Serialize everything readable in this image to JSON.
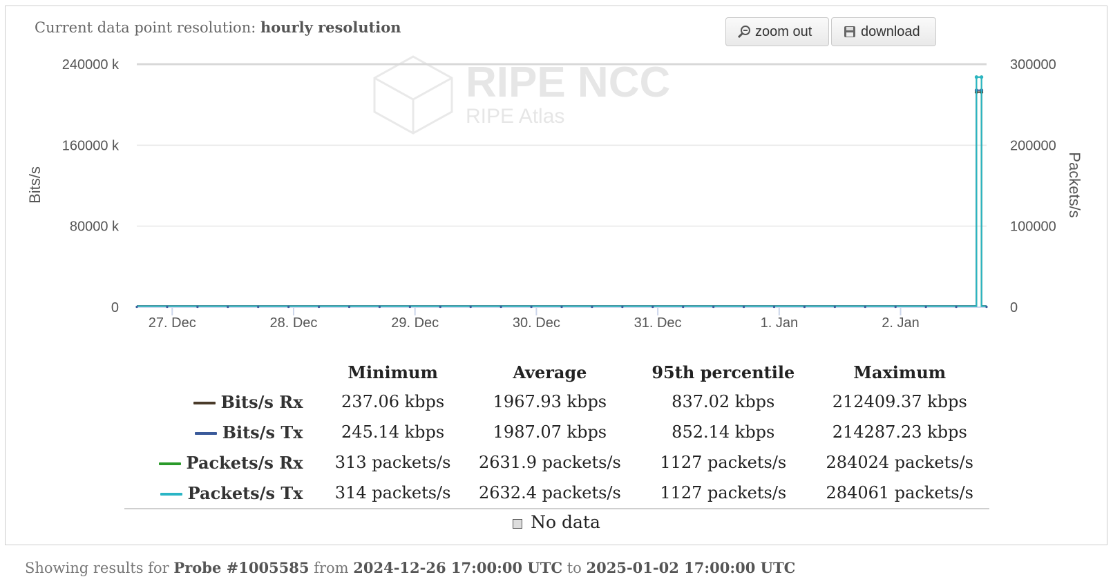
{
  "resolution": {
    "label": "Current data point resolution:",
    "value": "hourly resolution"
  },
  "toolbar": {
    "zoom_label": "zoom out",
    "download_label": "download",
    "zoom_icon": "magnifier-minus-icon",
    "download_icon": "floppy-disk-icon"
  },
  "watermark": {
    "org": "RIPE NCC",
    "product": "RIPE Atlas"
  },
  "chart_data": {
    "type": "line",
    "title": "",
    "xlabel": "",
    "ylabel": "Bits/s",
    "ylabel_right": "Packets/s",
    "x_range": [
      "2024-12-26 17:00",
      "2025-01-02 17:00"
    ],
    "x_ticks": [
      "27. Dec",
      "28. Dec",
      "29. Dec",
      "30. Dec",
      "31. Dec",
      "1. Jan",
      "2. Jan"
    ],
    "x_tick_dates": [
      "2024-12-27 00:00",
      "2024-12-28 00:00",
      "2024-12-29 00:00",
      "2024-12-30 00:00",
      "2024-12-31 00:00",
      "2025-01-01 00:00",
      "2025-01-02 00:00"
    ],
    "ylim_left": [
      0,
      240000
    ],
    "y_ticks_left": [
      "0",
      "80000 k",
      "160000 k",
      "240000 k"
    ],
    "ylim_right": [
      0,
      300000
    ],
    "y_ticks_right": [
      "0",
      "100000",
      "200000",
      "300000"
    ],
    "grid": true,
    "legend_placement": "bottom table",
    "series": [
      {
        "name": "Bits/s Rx",
        "axis": "left",
        "unit": "kbps",
        "color": "#4a3b2a",
        "baseline": 1200,
        "spike_start": "2025-01-02 15:00",
        "spike_end": "2025-01-02 16:00",
        "spike_value": 212409.37
      },
      {
        "name": "Bits/s Tx",
        "axis": "left",
        "unit": "kbps",
        "color": "#3a5a9a",
        "baseline": 1220,
        "spike_start": "2025-01-02 15:00",
        "spike_end": "2025-01-02 16:00",
        "spike_value": 214287.23
      },
      {
        "name": "Packets/s Rx",
        "axis": "right",
        "unit": "packets/s",
        "color": "#2a9a2a",
        "baseline": 1200,
        "spike_start": "2025-01-02 15:00",
        "spike_end": "2025-01-02 16:00",
        "spike_value": 284024
      },
      {
        "name": "Packets/s Tx",
        "axis": "right",
        "unit": "packets/s",
        "color": "#2ab5c5",
        "baseline": 1220,
        "spike_start": "2025-01-02 15:00",
        "spike_end": "2025-01-02 16:00",
        "spike_value": 284061
      }
    ]
  },
  "stats": {
    "headers": [
      "Minimum",
      "Average",
      "95th percentile",
      "Maximum"
    ],
    "rows": [
      {
        "name": "Bits/s Rx",
        "color": "#4a3b2a",
        "values": [
          "237.06 kbps",
          "1967.93 kbps",
          "837.02 kbps",
          "212409.37 kbps"
        ]
      },
      {
        "name": "Bits/s Tx",
        "color": "#3a5a9a",
        "values": [
          "245.14 kbps",
          "1987.07 kbps",
          "852.14 kbps",
          "214287.23 kbps"
        ]
      },
      {
        "name": "Packets/s Rx",
        "color": "#2a9a2a",
        "values": [
          "313 packets/s",
          "2631.9 packets/s",
          "1127 packets/s",
          "284024 packets/s"
        ]
      },
      {
        "name": "Packets/s Tx",
        "color": "#2ab5c5",
        "values": [
          "314 packets/s",
          "2632.4 packets/s",
          "1127 packets/s",
          "284061 packets/s"
        ]
      }
    ],
    "no_data_label": "No data"
  },
  "footer": {
    "prefix": "Showing results for",
    "probe": "Probe #1005585",
    "from_word": "from",
    "start": "2024-12-26 17:00:00 UTC",
    "to_word": "to",
    "end": "2025-01-02 17:00:00 UTC"
  }
}
